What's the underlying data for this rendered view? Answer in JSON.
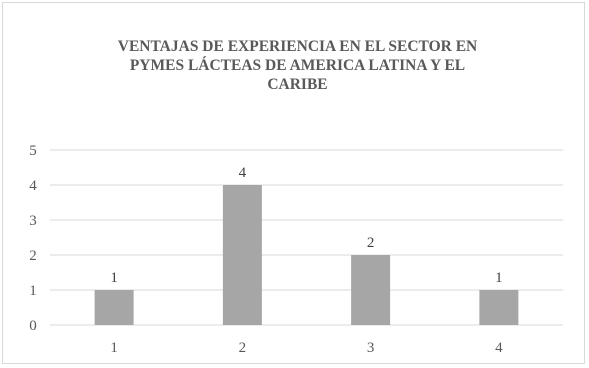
{
  "chart_data": {
    "type": "bar",
    "title_lines": [
      "VENTAJAS DE EXPERIENCIA EN EL SECTOR EN",
      "PYMES LÁCTEAS DE AMERICA LATINA Y EL",
      "CARIBE"
    ],
    "categories": [
      "1",
      "2",
      "3",
      "4"
    ],
    "values": [
      1,
      4,
      2,
      1
    ],
    "data_labels": [
      "1",
      "4",
      "2",
      "1"
    ],
    "y_ticks": [
      "0",
      "1",
      "2",
      "3",
      "4",
      "5"
    ],
    "ylim": [
      0,
      5
    ],
    "grid": true,
    "legend": "none",
    "bar_color": "#a6a6a6",
    "grid_color": "#d9d9d9"
  }
}
